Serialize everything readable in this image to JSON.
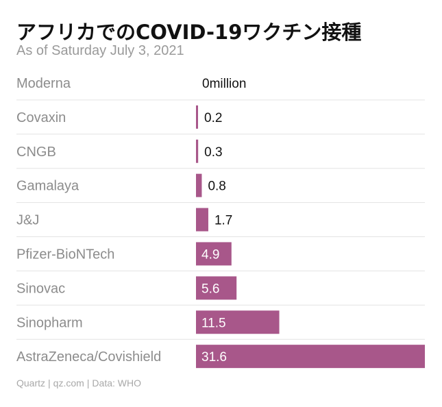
{
  "header": {
    "title": "アフリカでのCOVID-19ワクチン接種",
    "subtitle": "As of Saturday July 3, 2021"
  },
  "footer": {
    "source": "Quartz",
    "site": "qz.com",
    "data": "Data: WHO"
  },
  "chart_data": {
    "type": "bar",
    "orientation": "horizontal",
    "categories": [
      "Moderna",
      "Covaxin",
      "CNGB",
      "Gamalaya",
      "J&J",
      "Pfizer-BioNTech",
      "Sinovac",
      "Sinopharm",
      "AstraZeneca/Covishield"
    ],
    "values": [
      0,
      0.2,
      0.3,
      0.8,
      1.7,
      4.9,
      5.6,
      11.5,
      31.6
    ],
    "value_labels": [
      "0million",
      "0.2",
      "0.3",
      "0.8",
      "1.7",
      "4.9",
      "5.6",
      "11.5",
      "31.6"
    ],
    "xlim": [
      0,
      31.6
    ],
    "bar_color": "#a8578a",
    "grid": false,
    "legend": "none"
  }
}
